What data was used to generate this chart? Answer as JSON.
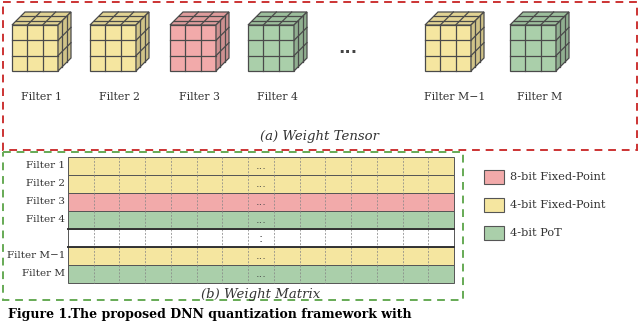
{
  "colors": {
    "pink": "#F2AAAA",
    "yellow": "#F5E6A0",
    "green": "#AACFAA",
    "border_top": "#CC3333",
    "border_bottom": "#66AA55",
    "edge": "#555555",
    "white": "#FFFFFF",
    "text": "#333333"
  },
  "filters_top": [
    {
      "label": "Filter 1",
      "color": "#F5E6A0"
    },
    {
      "label": "Filter 2",
      "color": "#F5E6A0"
    },
    {
      "label": "Filter 3",
      "color": "#F2AAAA"
    },
    {
      "label": "Filter 4",
      "color": "#AACFAA"
    },
    {
      "label": "Filter M−1",
      "color": "#F5E6A0"
    },
    {
      "label": "Filter M",
      "color": "#AACFAA"
    }
  ],
  "matrix_rows": [
    {
      "label": "Filter 1",
      "color": "#F5E6A0"
    },
    {
      "label": "Filter 2",
      "color": "#F5E6A0"
    },
    {
      "label": "Filter 3",
      "color": "#F2AAAA"
    },
    {
      "label": "Filter 4",
      "color": "#AACFAA"
    },
    {
      "label": "",
      "color": "#FFFFFF"
    },
    {
      "label": "Filter M−1",
      "color": "#F5E6A0"
    },
    {
      "label": "Filter M",
      "color": "#AACFAA"
    }
  ],
  "legend": [
    {
      "label": "8-bit Fixed-Point",
      "color": "#F2AAAA"
    },
    {
      "label": "4-bit Fixed-Point",
      "color": "#F5E6A0"
    },
    {
      "label": "4-bit PoT",
      "color": "#AACFAA"
    }
  ],
  "subtitle_top": "(a) Weight Tensor",
  "subtitle_bottom": "(b) Weight Matrix",
  "caption": "Figure 1.   The proposed DNN quantization framework with"
}
